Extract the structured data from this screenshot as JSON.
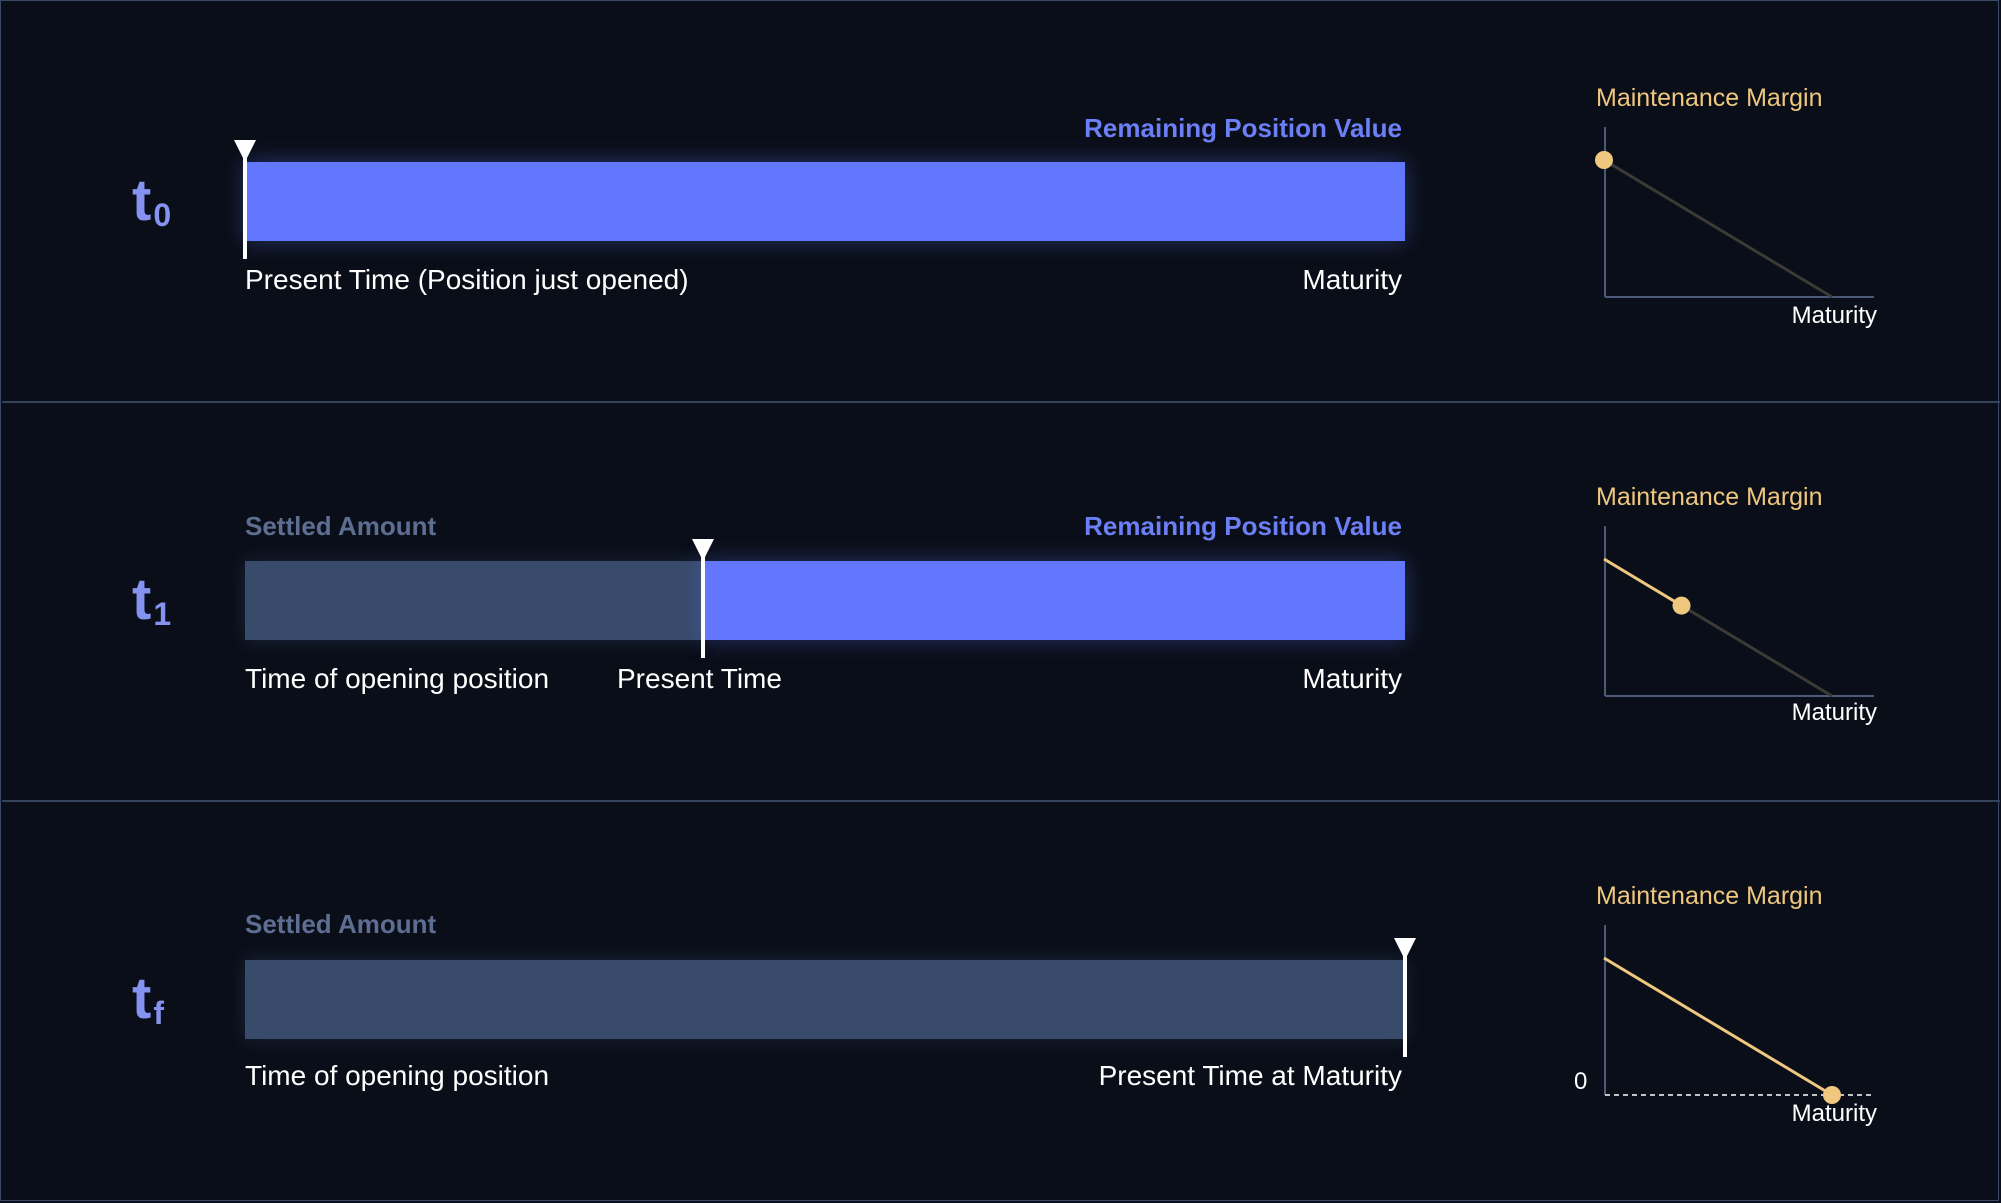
{
  "colors": {
    "background": "#0a0e18",
    "remaining": "#6277fe",
    "settled": "#394b6b",
    "marker": "#ffffff",
    "margin": "#efc77e",
    "margin_line_faded": "#3b3a36",
    "axis": "#4a5a78"
  },
  "panels": [
    {
      "stage": {
        "letter": "t",
        "sub": "0"
      },
      "settled_label": "",
      "remaining_label": "Remaining Position Value",
      "present_fraction": 0.0,
      "labels": {
        "start": "Present Time (Position just opened)",
        "present": "",
        "end": "Maturity"
      },
      "chart": {
        "title": "Maintenance Margin",
        "x_label": "Maturity",
        "zero_label": "",
        "progress": 0.0
      }
    },
    {
      "stage": {
        "letter": "t",
        "sub": "1"
      },
      "settled_label": "Settled Amount",
      "remaining_label": "Remaining Position Value",
      "present_fraction": 0.395,
      "labels": {
        "start": "Time of opening position",
        "present": "Present Time",
        "end": "Maturity"
      },
      "chart": {
        "title": "Maintenance Margin",
        "x_label": "Maturity",
        "zero_label": "",
        "progress": 0.34
      }
    },
    {
      "stage": {
        "letter": "t",
        "sub": "f"
      },
      "settled_label": "Settled Amount",
      "remaining_label": "",
      "present_fraction": 1.0,
      "labels": {
        "start": "Time of opening position",
        "present": "",
        "end": "Present Time at Maturity"
      },
      "chart": {
        "title": "Maintenance Margin",
        "x_label": "Maturity",
        "zero_label": "0",
        "progress": 1.0
      }
    }
  ]
}
